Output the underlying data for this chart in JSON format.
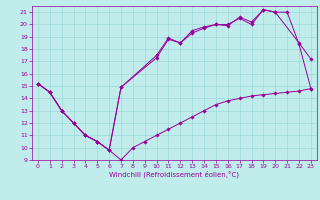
{
  "xlabel": "Windchill (Refroidissement éolien,°C)",
  "bg_color": "#c0ecec",
  "line_color": "#990099",
  "grid_color": "#a0d8d8",
  "xlim": [
    -0.5,
    23.5
  ],
  "ylim": [
    9,
    21.5
  ],
  "xticks": [
    0,
    1,
    2,
    3,
    4,
    5,
    6,
    7,
    8,
    9,
    10,
    11,
    12,
    13,
    14,
    15,
    16,
    17,
    18,
    19,
    20,
    21,
    22,
    23
  ],
  "yticks": [
    9,
    10,
    11,
    12,
    13,
    14,
    15,
    16,
    17,
    18,
    19,
    20,
    21
  ],
  "line1_x": [
    0,
    1,
    2,
    3,
    4,
    5,
    6,
    7,
    8,
    9,
    10,
    11,
    12,
    13,
    14,
    15,
    16,
    17,
    18,
    19,
    20,
    21,
    22,
    23
  ],
  "line1_y": [
    15.2,
    14.5,
    13.0,
    12.0,
    11.0,
    10.5,
    9.8,
    9.0,
    10.0,
    10.5,
    11.0,
    11.5,
    12.0,
    12.5,
    13.0,
    13.5,
    13.8,
    14.0,
    14.2,
    14.3,
    14.4,
    14.5,
    14.6,
    14.8
  ],
  "line2_x": [
    0,
    1,
    2,
    3,
    4,
    5,
    6,
    7,
    10,
    11,
    12,
    13,
    14,
    15,
    16,
    17,
    18,
    19,
    20,
    22,
    23
  ],
  "line2_y": [
    15.2,
    14.5,
    13.0,
    12.0,
    11.0,
    10.5,
    9.8,
    14.9,
    17.5,
    18.9,
    18.5,
    19.5,
    19.8,
    20.0,
    20.0,
    20.5,
    20.0,
    21.2,
    21.0,
    18.5,
    17.2
  ],
  "line3_x": [
    0,
    1,
    2,
    3,
    4,
    5,
    6,
    7,
    10,
    11,
    12,
    13,
    14,
    15,
    16,
    17,
    18,
    19,
    20,
    21,
    22,
    23
  ],
  "line3_y": [
    15.2,
    14.5,
    13.0,
    12.0,
    11.0,
    10.5,
    9.8,
    14.9,
    17.3,
    18.8,
    18.5,
    19.3,
    19.7,
    20.0,
    19.9,
    20.6,
    20.2,
    21.2,
    21.0,
    21.0,
    18.4,
    14.8
  ]
}
